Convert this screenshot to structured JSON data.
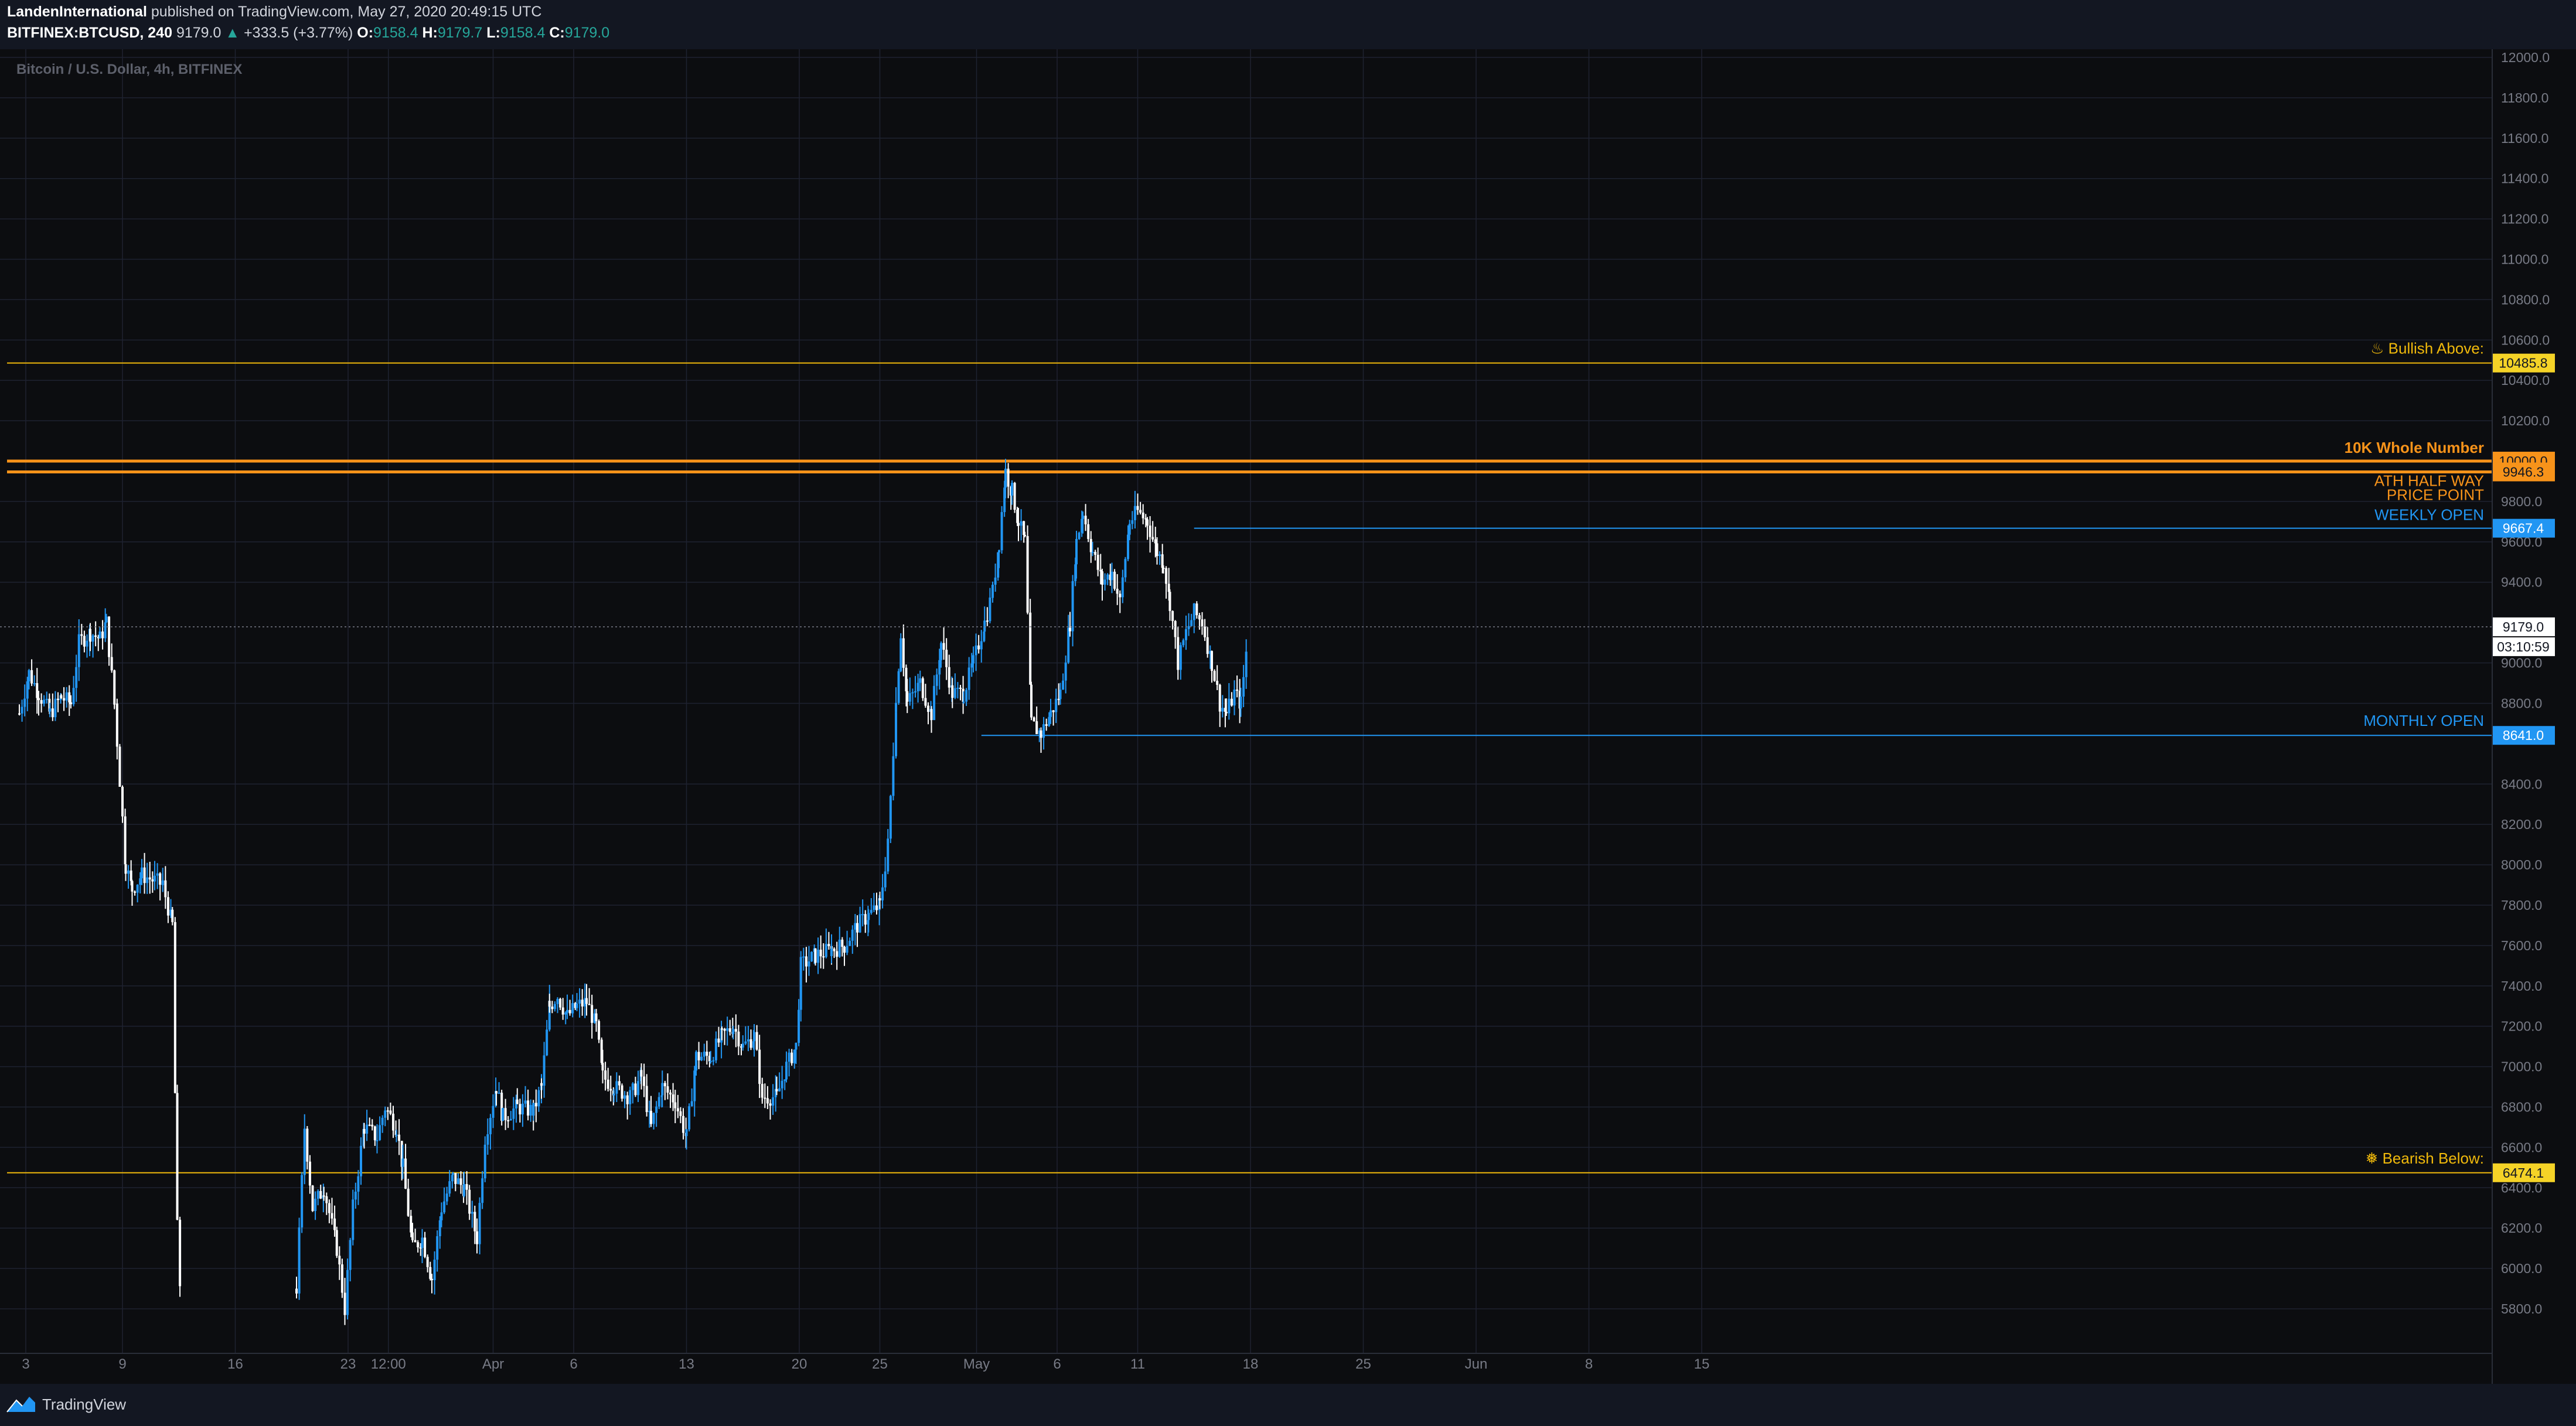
{
  "header": {
    "author": "LandenInternational",
    "published_text": "published on TradingView.com, May 27, 2020 20:49:15 UTC",
    "symbol": "BITFINEX:BTCUSD, 240",
    "last": "9179.0",
    "change_arrow": "▲",
    "change": "+333.5 (+3.77%)",
    "o_label": "O:",
    "o": "9158.4",
    "h_label": "H:",
    "h": "9179.7",
    "l_label": "L:",
    "l": "9158.4",
    "c_label": "C:",
    "c": "9179.0"
  },
  "footer": {
    "brand": "TradingView",
    "logo_icon": "tradingview-logo-icon"
  },
  "colors": {
    "background": "#131722",
    "candle_up": "#2196f3",
    "candle_down": "#ffffff",
    "grid": "#1e2230",
    "orange": "#f7931a",
    "yellow": "#f0b90b",
    "blue": "#2196f3"
  },
  "chart_data": {
    "type": "candlestick",
    "title": "Bitcoin / U.S. Dollar, 4h, BITFINEX",
    "ylim": [
      5600,
      12000
    ],
    "y_ticks": [
      "12000.0",
      "11800.0",
      "11600.0",
      "11400.0",
      "11200.0",
      "11000.0",
      "10800.0",
      "10600.0",
      "10400.0",
      "10200.0",
      "9800.0",
      "9600.0",
      "9400.0",
      "9000.0",
      "8800.0",
      "8400.0",
      "8200.0",
      "8000.0",
      "7800.0",
      "7600.0",
      "7400.0",
      "7200.0",
      "7000.0",
      "6800.0",
      "6600.0",
      "6400.0",
      "6200.0",
      "6000.0",
      "5800.0"
    ],
    "y_tick_values": [
      12000,
      11800,
      11600,
      11400,
      11200,
      11000,
      10800,
      10600,
      10400,
      10200,
      9800,
      9600,
      9400,
      9000,
      8800,
      8400,
      8200,
      8000,
      7800,
      7600,
      7400,
      7200,
      7000,
      6800,
      6600,
      6400,
      6200,
      6000,
      5800
    ],
    "x_ticks": [
      {
        "label": "3",
        "day": 3
      },
      {
        "label": "9",
        "day": 9
      },
      {
        "label": "16",
        "day": 16
      },
      {
        "label": "23",
        "day": 23
      },
      {
        "label": "12:00",
        "day": 25.5
      },
      {
        "label": "Apr",
        "day": 32
      },
      {
        "label": "6",
        "day": 37
      },
      {
        "label": "13",
        "day": 44
      },
      {
        "label": "20",
        "day": 51
      },
      {
        "label": "25",
        "day": 56
      },
      {
        "label": "May",
        "day": 62
      },
      {
        "label": "6",
        "day": 67
      },
      {
        "label": "11",
        "day": 72
      },
      {
        "label": "18",
        "day": 79
      },
      {
        "label": "25",
        "day": 86
      },
      {
        "label": "Jun",
        "day": 93
      },
      {
        "label": "8",
        "day": 100
      },
      {
        "label": "15",
        "day": 107
      }
    ],
    "x_axis_note": "day index counted from March 1, 2020",
    "price_path": [
      [
        2.6,
        8750
      ],
      [
        3.2,
        8950
      ],
      [
        3.8,
        8850
      ],
      [
        4.5,
        8750
      ],
      [
        5.2,
        8830
      ],
      [
        5.8,
        8800
      ],
      [
        6.3,
        9100
      ],
      [
        7.0,
        9150
      ],
      [
        7.6,
        9120
      ],
      [
        8.0,
        9200
      ],
      [
        8.5,
        8800
      ],
      [
        9.2,
        8000
      ],
      [
        9.6,
        7880
      ],
      [
        10.2,
        7950
      ],
      [
        11.0,
        7920
      ],
      [
        11.5,
        7900
      ],
      [
        12.1,
        7700
      ],
      [
        12.4,
        6200
      ],
      [
        12.7,
        5700
      ],
      [
        19.8,
        5900
      ],
      [
        20.3,
        6700
      ],
      [
        20.8,
        6300
      ],
      [
        21.5,
        6400
      ],
      [
        22.3,
        6100
      ],
      [
        22.8,
        5800
      ],
      [
        23.3,
        6300
      ],
      [
        24.0,
        6700
      ],
      [
        24.8,
        6650
      ],
      [
        25.3,
        6800
      ],
      [
        26.0,
        6700
      ],
      [
        26.4,
        6500
      ],
      [
        27.0,
        6100
      ],
      [
        27.6,
        6150
      ],
      [
        28.2,
        5950
      ],
      [
        28.8,
        6300
      ],
      [
        29.5,
        6450
      ],
      [
        30.2,
        6400
      ],
      [
        31.0,
        6150
      ],
      [
        31.5,
        6650
      ],
      [
        32.2,
        6900
      ],
      [
        32.6,
        6750
      ],
      [
        33.5,
        6800
      ],
      [
        34.5,
        6780
      ],
      [
        35.0,
        6900
      ],
      [
        35.5,
        7300
      ],
      [
        36.0,
        7350
      ],
      [
        36.6,
        7250
      ],
      [
        37.2,
        7300
      ],
      [
        37.8,
        7320
      ],
      [
        38.4,
        7200
      ],
      [
        38.8,
        6950
      ],
      [
        39.5,
        6900
      ],
      [
        40.5,
        6850
      ],
      [
        41.2,
        6950
      ],
      [
        41.8,
        6700
      ],
      [
        42.5,
        6900
      ],
      [
        43.3,
        6830
      ],
      [
        44.0,
        6650
      ],
      [
        44.6,
        7050
      ],
      [
        45.5,
        7050
      ],
      [
        46.2,
        7150
      ],
      [
        46.9,
        7200
      ],
      [
        47.5,
        7100
      ],
      [
        48.2,
        7150
      ],
      [
        48.7,
        6850
      ],
      [
        49.6,
        6850
      ],
      [
        50.2,
        7000
      ],
      [
        50.8,
        7100
      ],
      [
        51.1,
        7500
      ],
      [
        52.0,
        7550
      ],
      [
        53.0,
        7580
      ],
      [
        53.8,
        7600
      ],
      [
        54.6,
        7700
      ],
      [
        55.3,
        7750
      ],
      [
        56.0,
        7800
      ],
      [
        56.5,
        8100
      ],
      [
        57.0,
        8800
      ],
      [
        57.3,
        9150
      ],
      [
        57.7,
        8800
      ],
      [
        58.5,
        8900
      ],
      [
        59.2,
        8750
      ],
      [
        59.8,
        9100
      ],
      [
        60.5,
        8850
      ],
      [
        61.2,
        8850
      ],
      [
        61.8,
        9000
      ],
      [
        62.5,
        9200
      ],
      [
        63.0,
        9350
      ],
      [
        63.4,
        9600
      ],
      [
        63.8,
        9950
      ],
      [
        64.2,
        9850
      ],
      [
        64.6,
        9700
      ],
      [
        65.0,
        9600
      ],
      [
        65.4,
        8700
      ],
      [
        66.0,
        8650
      ],
      [
        66.6,
        8750
      ],
      [
        67.2,
        8850
      ],
      [
        67.8,
        9200
      ],
      [
        68.2,
        9600
      ],
      [
        68.6,
        9750
      ],
      [
        69.2,
        9550
      ],
      [
        69.8,
        9400
      ],
      [
        70.4,
        9450
      ],
      [
        70.9,
        9300
      ],
      [
        71.5,
        9700
      ],
      [
        72.0,
        9750
      ],
      [
        72.6,
        9700
      ],
      [
        73.2,
        9550
      ],
      [
        73.6,
        9500
      ],
      [
        74.0,
        9300
      ],
      [
        74.5,
        9000
      ],
      [
        75.0,
        9150
      ],
      [
        75.5,
        9250
      ],
      [
        76.0,
        9200
      ],
      [
        76.6,
        9000
      ],
      [
        77.1,
        8800
      ],
      [
        77.5,
        8750
      ],
      [
        78.0,
        8850
      ],
      [
        78.4,
        8800
      ],
      [
        78.9,
        9180
      ]
    ],
    "series": [
      {
        "name": "BTCUSD",
        "values_note": "approximate 4h closes along price_path"
      }
    ],
    "levels": [
      {
        "label": "♨ Bullish Above:",
        "value": 10485.8,
        "value_label": "10485.8",
        "color": "#f0b90b",
        "style": "thin"
      },
      {
        "label": "10K Whole Number",
        "value": 10000.0,
        "value_label": "10000.0",
        "color": "#f7931a",
        "style": "thick"
      },
      {
        "label": "ATH HALF WAY",
        "label2": "PRICE POINT",
        "value": 9946.3,
        "value_label": "9946.3",
        "color": "#f7931a",
        "style": "thick"
      },
      {
        "label": "WEEKLY OPEN",
        "value": 9667.4,
        "value_label": "9667.4",
        "color": "#2196f3",
        "style": "thin",
        "from_day": 75.5
      },
      {
        "label": "MONTHLY OPEN",
        "value": 8641.0,
        "value_label": "8641.0",
        "color": "#2196f3",
        "style": "thin",
        "from_day": 62.3
      },
      {
        "label": "❅ Bearish Below:",
        "value": 6474.1,
        "value_label": "6474.1",
        "color": "#f0b90b",
        "style": "thin"
      }
    ],
    "last_price": {
      "value": 9179.0,
      "label": "9179.0",
      "countdown": "03:10:59"
    },
    "grid": true
  }
}
